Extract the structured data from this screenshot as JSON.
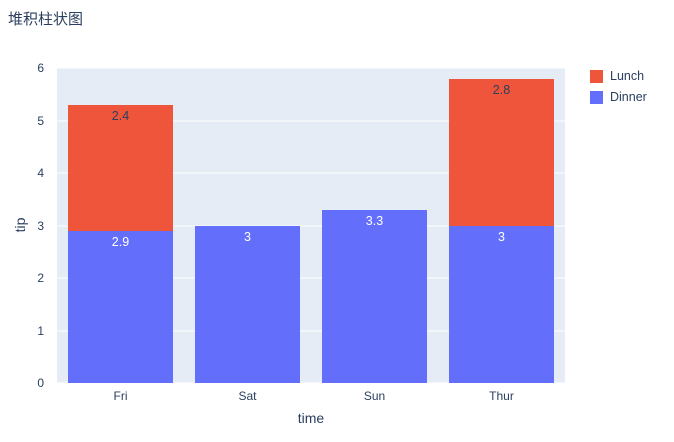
{
  "page": {
    "title": "堆积柱状图"
  },
  "chart_data": {
    "type": "bar",
    "stacked": true,
    "title": "堆积柱状图",
    "xlabel": "time",
    "ylabel": "tip",
    "categories": [
      "Fri",
      "Sat",
      "Sun",
      "Thur"
    ],
    "series": [
      {
        "name": "Dinner",
        "color": "#636efa",
        "label_color": "#ffffff",
        "values": [
          2.9,
          3,
          3.3,
          3
        ]
      },
      {
        "name": "Lunch",
        "color": "#ef553b",
        "label_color": "#2a3f5f",
        "values": [
          2.4,
          0,
          0,
          2.8
        ]
      }
    ],
    "ylim": [
      0,
      6
    ],
    "yticks": [
      0,
      1,
      2,
      3,
      4,
      5,
      6
    ],
    "grid": true,
    "plot_bg": "#e5ecf6",
    "grid_color": "#ffffff",
    "text_color": "#2a3f5f",
    "legend_position": "top-right-outside",
    "legend": [
      {
        "label": "Lunch",
        "color": "#ef553b"
      },
      {
        "label": "Dinner",
        "color": "#636efa"
      }
    ]
  }
}
